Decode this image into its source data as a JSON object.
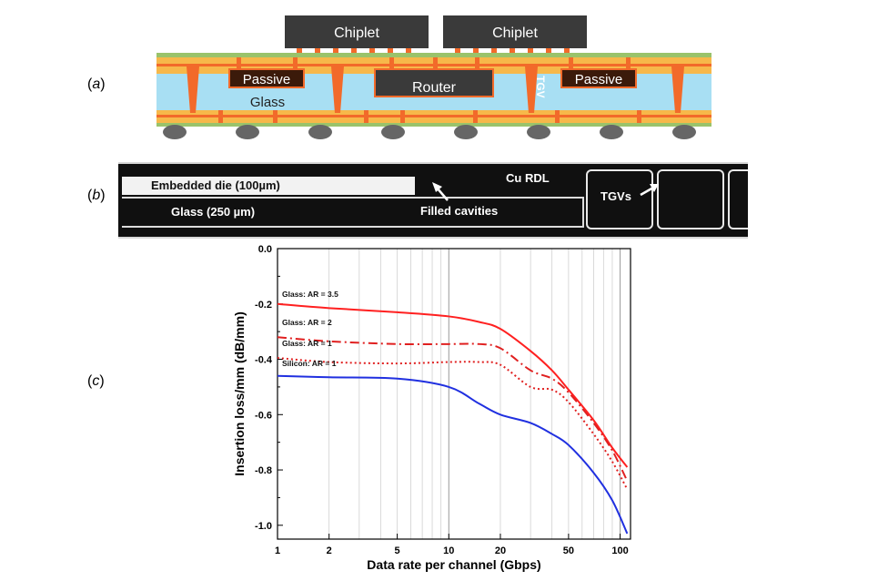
{
  "panels": {
    "a_label": "a",
    "b_label": "b",
    "c_label": "c"
  },
  "schematic": {
    "chiplet_left": "Chiplet",
    "chiplet_right": "Chiplet",
    "passive_left": "Passive",
    "router": "Router",
    "tgv": "TGV",
    "passive_right": "Passive",
    "glass": "Glass",
    "colors": {
      "glass": "#a8dff3",
      "copper": "#f26a2a",
      "build_up": "#f7b84a",
      "die": "#3a3a3a",
      "solder": "#666666",
      "green_layer": "#9ac36b"
    }
  },
  "micrograph": {
    "embedded_die": "Embedded die (100µm)",
    "glass": "Glass (250 µm)",
    "filled_cavities": "Filled cavities",
    "cu_rdl": "Cu RDL",
    "tgvs": "TGVs"
  },
  "chart_data": {
    "type": "line",
    "xlabel": "Data rate per channel (Gbps)",
    "ylabel": "Insertion loss/mm (dB/mm)",
    "xscale": "log",
    "xlim": [
      1,
      115
    ],
    "ylim": [
      -1.05,
      0.0
    ],
    "x_ticks": [
      1,
      2,
      5,
      10,
      20,
      50,
      100
    ],
    "x_tick_labels": [
      "1",
      "2",
      "5",
      "10",
      "20",
      "50",
      "100"
    ],
    "y_ticks": [
      0.0,
      -0.2,
      -0.4,
      -0.6,
      -0.8,
      -1.0
    ],
    "y_tick_labels": [
      "0.0",
      "-0.2",
      "-0.4",
      "-0.6",
      "-0.8",
      "-1.0"
    ],
    "grid": "vertical minor lines",
    "series": [
      {
        "name": "Glass: AR = 3.5",
        "color": "#ff2020",
        "dash": "solid",
        "x": [
          1,
          2,
          5,
          10,
          15,
          20,
          30,
          40,
          50,
          70,
          90,
          110
        ],
        "y": [
          -0.2,
          -0.215,
          -0.23,
          -0.245,
          -0.265,
          -0.29,
          -0.37,
          -0.44,
          -0.51,
          -0.62,
          -0.72,
          -0.79
        ]
      },
      {
        "name": "Glass: AR = 2",
        "color": "#e02020",
        "dash": "dashdot",
        "x": [
          1,
          2,
          5,
          10,
          15,
          20,
          30,
          40,
          50,
          70,
          90,
          110
        ],
        "y": [
          -0.32,
          -0.335,
          -0.345,
          -0.345,
          -0.345,
          -0.36,
          -0.44,
          -0.47,
          -0.52,
          -0.63,
          -0.73,
          -0.84
        ]
      },
      {
        "name": "Glass: AR = 1",
        "color": "#e02020",
        "dash": "dotted",
        "x": [
          1,
          2,
          5,
          10,
          15,
          20,
          30,
          40,
          50,
          70,
          90,
          110
        ],
        "y": [
          -0.395,
          -0.41,
          -0.415,
          -0.41,
          -0.41,
          -0.42,
          -0.5,
          -0.51,
          -0.555,
          -0.67,
          -0.77,
          -0.87
        ]
      },
      {
        "name": "Silicon: AR = 1",
        "color": "#2030e0",
        "dash": "solid",
        "x": [
          1,
          2,
          5,
          10,
          15,
          20,
          30,
          40,
          50,
          70,
          90,
          110
        ],
        "y": [
          -0.46,
          -0.465,
          -0.47,
          -0.5,
          -0.56,
          -0.6,
          -0.63,
          -0.67,
          -0.71,
          -0.81,
          -0.91,
          -1.03
        ]
      }
    ]
  }
}
